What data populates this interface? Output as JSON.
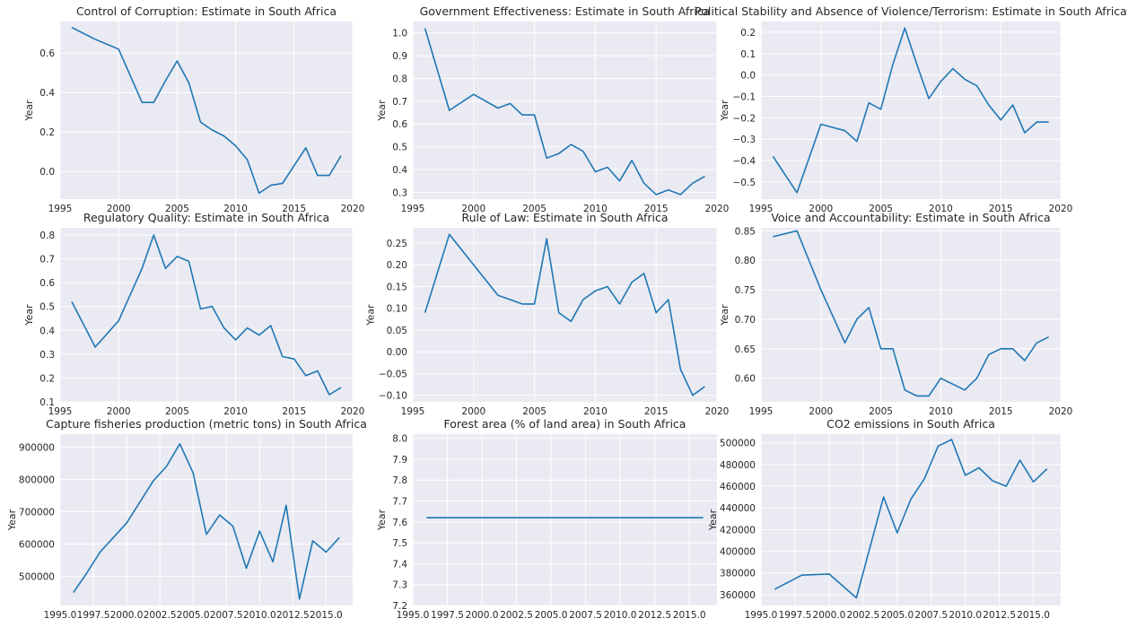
{
  "colors": {
    "plot_bg": "#eaeaf2",
    "grid": "#ffffff",
    "line": "#1f77b4",
    "text": "#262626"
  },
  "chart_data": [
    {
      "type": "line",
      "title": "Control of Corruption: Estimate in South Africa",
      "ylabel": "Year",
      "xlim": [
        1995,
        2020
      ],
      "ylim": [
        -0.14,
        0.76
      ],
      "xticks": [
        1995,
        2000,
        2005,
        2010,
        2015,
        2020
      ],
      "xtick_labels": [
        "1995",
        "2000",
        "2005",
        "2010",
        "2015",
        "2020"
      ],
      "yticks": [
        0.0,
        0.2,
        0.4,
        0.6
      ],
      "ytick_labels": [
        "0.0",
        "0.2",
        "0.4",
        "0.6"
      ],
      "grid": true,
      "series": [
        {
          "x": [
            1996,
            1998,
            2000,
            2002,
            2003,
            2004,
            2005,
            2006,
            2007,
            2008,
            2009,
            2010,
            2011,
            2012,
            2013,
            2014,
            2015,
            2016,
            2017,
            2018,
            2019
          ],
          "y": [
            0.73,
            0.67,
            0.62,
            0.35,
            0.35,
            0.46,
            0.56,
            0.45,
            0.25,
            0.21,
            0.18,
            0.13,
            0.06,
            -0.11,
            -0.07,
            -0.06,
            0.03,
            0.12,
            -0.02,
            -0.02,
            0.08
          ]
        }
      ]
    },
    {
      "type": "line",
      "title": "Government Effectiveness: Estimate in South Africa",
      "ylabel": "Year",
      "xlim": [
        1995,
        2020
      ],
      "ylim": [
        0.27,
        1.05
      ],
      "xticks": [
        1995,
        2000,
        2005,
        2010,
        2015,
        2020
      ],
      "xtick_labels": [
        "1995",
        "2000",
        "2005",
        "2010",
        "2015",
        "2020"
      ],
      "yticks": [
        0.3,
        0.4,
        0.5,
        0.6,
        0.7,
        0.8,
        0.9,
        1.0
      ],
      "ytick_labels": [
        "0.3",
        "0.4",
        "0.5",
        "0.6",
        "0.7",
        "0.8",
        "0.9",
        "1.0"
      ],
      "grid": true,
      "series": [
        {
          "x": [
            1996,
            1998,
            2000,
            2002,
            2003,
            2004,
            2005,
            2006,
            2007,
            2008,
            2009,
            2010,
            2011,
            2012,
            2013,
            2014,
            2015,
            2016,
            2017,
            2018,
            2019
          ],
          "y": [
            1.02,
            0.66,
            0.73,
            0.67,
            0.69,
            0.64,
            0.64,
            0.45,
            0.47,
            0.51,
            0.48,
            0.39,
            0.41,
            0.35,
            0.44,
            0.34,
            0.29,
            0.31,
            0.29,
            0.34,
            0.37
          ]
        }
      ]
    },
    {
      "type": "line",
      "title": "Political Stability and Absence of Violence/Terrorism: Estimate in South Africa",
      "ylabel": "Year",
      "xlim": [
        1995,
        2020
      ],
      "ylim": [
        -0.58,
        0.25
      ],
      "xticks": [
        1995,
        2000,
        2005,
        2010,
        2015,
        2020
      ],
      "xtick_labels": [
        "1995",
        "2000",
        "2005",
        "2010",
        "2015",
        "2020"
      ],
      "yticks": [
        -0.5,
        -0.4,
        -0.3,
        -0.2,
        -0.1,
        0.0,
        0.1,
        0.2
      ],
      "ytick_labels": [
        "−0.5",
        "−0.4",
        "−0.3",
        "−0.2",
        "−0.1",
        "0.0",
        "0.1",
        "0.2"
      ],
      "grid": true,
      "series": [
        {
          "x": [
            1996,
            1998,
            2000,
            2002,
            2003,
            2004,
            2005,
            2006,
            2007,
            2008,
            2009,
            2010,
            2011,
            2012,
            2013,
            2014,
            2015,
            2016,
            2017,
            2018,
            2019
          ],
          "y": [
            -0.38,
            -0.55,
            -0.23,
            -0.26,
            -0.31,
            -0.13,
            -0.16,
            0.05,
            0.22,
            0.05,
            -0.11,
            -0.03,
            0.03,
            -0.02,
            -0.05,
            -0.14,
            -0.21,
            -0.14,
            -0.27,
            -0.22,
            -0.22
          ]
        }
      ]
    },
    {
      "type": "line",
      "title": "Regulatory Quality: Estimate in South Africa",
      "ylabel": "Year",
      "xlim": [
        1995,
        2020
      ],
      "ylim": [
        0.1,
        0.83
      ],
      "xticks": [
        1995,
        2000,
        2005,
        2010,
        2015,
        2020
      ],
      "xtick_labels": [
        "1995",
        "2000",
        "2005",
        "2010",
        "2015",
        "2020"
      ],
      "yticks": [
        0.1,
        0.2,
        0.3,
        0.4,
        0.5,
        0.6,
        0.7,
        0.8
      ],
      "ytick_labels": [
        "0.1",
        "0.2",
        "0.3",
        "0.4",
        "0.5",
        "0.6",
        "0.7",
        "0.8"
      ],
      "grid": true,
      "series": [
        {
          "x": [
            1996,
            1998,
            2000,
            2002,
            2003,
            2004,
            2005,
            2006,
            2007,
            2008,
            2009,
            2010,
            2011,
            2012,
            2013,
            2014,
            2015,
            2016,
            2017,
            2018,
            2019
          ],
          "y": [
            0.52,
            0.33,
            0.44,
            0.66,
            0.8,
            0.66,
            0.71,
            0.69,
            0.49,
            0.5,
            0.41,
            0.36,
            0.41,
            0.38,
            0.42,
            0.29,
            0.28,
            0.21,
            0.23,
            0.13,
            0.16
          ]
        }
      ]
    },
    {
      "type": "line",
      "title": "Rule of Law: Estimate in South Africa",
      "ylabel": "Year",
      "xlim": [
        1995,
        2020
      ],
      "ylim": [
        -0.115,
        0.285
      ],
      "xticks": [
        1995,
        2000,
        2005,
        2010,
        2015,
        2020
      ],
      "xtick_labels": [
        "1995",
        "2000",
        "2005",
        "2010",
        "2015",
        "2020"
      ],
      "yticks": [
        -0.1,
        -0.05,
        0.0,
        0.05,
        0.1,
        0.15,
        0.2,
        0.25
      ],
      "ytick_labels": [
        "−0.10",
        "−0.05",
        "0.00",
        "0.05",
        "0.10",
        "0.15",
        "0.20",
        "0.25"
      ],
      "grid": true,
      "series": [
        {
          "x": [
            1996,
            1998,
            2000,
            2002,
            2003,
            2004,
            2005,
            2006,
            2007,
            2008,
            2009,
            2010,
            2011,
            2012,
            2013,
            2014,
            2015,
            2016,
            2017,
            2018,
            2019
          ],
          "y": [
            0.09,
            0.27,
            0.2,
            0.13,
            0.12,
            0.11,
            0.11,
            0.26,
            0.09,
            0.07,
            0.12,
            0.14,
            0.15,
            0.11,
            0.16,
            0.18,
            0.09,
            0.12,
            -0.04,
            -0.1,
            -0.08
          ]
        }
      ]
    },
    {
      "type": "line",
      "title": "Voice and Accountability: Estimate in South Africa",
      "ylabel": "Year",
      "xlim": [
        1995,
        2020
      ],
      "ylim": [
        0.56,
        0.855
      ],
      "xticks": [
        1995,
        2000,
        2005,
        2010,
        2015,
        2020
      ],
      "xtick_labels": [
        "1995",
        "2000",
        "2005",
        "2010",
        "2015",
        "2020"
      ],
      "yticks": [
        0.6,
        0.65,
        0.7,
        0.75,
        0.8,
        0.85
      ],
      "ytick_labels": [
        "0.60",
        "0.65",
        "0.70",
        "0.75",
        "0.80",
        "0.85"
      ],
      "grid": true,
      "series": [
        {
          "x": [
            1996,
            1998,
            2000,
            2002,
            2003,
            2004,
            2005,
            2006,
            2007,
            2008,
            2009,
            2010,
            2011,
            2012,
            2013,
            2014,
            2015,
            2016,
            2017,
            2018,
            2019
          ],
          "y": [
            0.84,
            0.85,
            0.75,
            0.66,
            0.7,
            0.72,
            0.65,
            0.65,
            0.58,
            0.57,
            0.57,
            0.6,
            0.59,
            0.58,
            0.6,
            0.64,
            0.65,
            0.65,
            0.63,
            0.66,
            0.67
          ]
        }
      ]
    },
    {
      "type": "line",
      "title": "Capture fisheries production (metric tons) in South Africa",
      "ylabel": "Year",
      "xlim": [
        1995,
        2017
      ],
      "ylim": [
        410000,
        940000
      ],
      "xticks": [
        1995,
        1997.5,
        2000,
        2002.5,
        2005,
        2007.5,
        2010,
        2012.5,
        2015
      ],
      "xtick_labels": [
        "1995.0",
        "1997.5",
        "2000.0",
        "2002.5",
        "2005.0",
        "2007.5",
        "2010.0",
        "2012.5",
        "2015.0"
      ],
      "yticks": [
        500000,
        600000,
        700000,
        800000,
        900000
      ],
      "ytick_labels": [
        "500000",
        "600000",
        "700000",
        "800000",
        "900000"
      ],
      "grid": true,
      "series": [
        {
          "x": [
            1996,
            1997,
            1998,
            1999,
            2000,
            2001,
            2002,
            2003,
            2004,
            2005,
            2006,
            2007,
            2008,
            2009,
            2010,
            2011,
            2012,
            2013,
            2014,
            2015,
            2016
          ],
          "y": [
            450000,
            510000,
            575000,
            620000,
            665000,
            730000,
            795000,
            840000,
            910000,
            820000,
            630000,
            690000,
            655000,
            525000,
            640000,
            545000,
            720000,
            430000,
            610000,
            575000,
            620000
          ]
        }
      ]
    },
    {
      "type": "line",
      "title": "Forest area (% of land area) in South Africa",
      "ylabel": "Year",
      "xlim": [
        1995,
        2017
      ],
      "ylim": [
        7.2,
        8.02
      ],
      "xticks": [
        1995,
        1997.5,
        2000,
        2002.5,
        2005,
        2007.5,
        2010,
        2012.5,
        2015
      ],
      "xtick_labels": [
        "1995.0",
        "1997.5",
        "2000.0",
        "2002.5",
        "2005.0",
        "2007.5",
        "2010.0",
        "2012.5",
        "2015.0"
      ],
      "yticks": [
        7.2,
        7.3,
        7.4,
        7.5,
        7.6,
        7.7,
        7.8,
        7.9,
        8.0
      ],
      "ytick_labels": [
        "7.2",
        "7.3",
        "7.4",
        "7.5",
        "7.6",
        "7.7",
        "7.8",
        "7.9",
        "8.0"
      ],
      "grid": true,
      "series": [
        {
          "x": [
            1996,
            2016
          ],
          "y": [
            7.62,
            7.62
          ]
        }
      ]
    },
    {
      "type": "line",
      "title": "CO2 emissions in South Africa",
      "ylabel": "Year",
      "xlim": [
        1995,
        2017
      ],
      "ylim": [
        350000,
        508000
      ],
      "xticks": [
        1995,
        1997.5,
        2000,
        2002.5,
        2005,
        2007.5,
        2010,
        2012.5,
        2015
      ],
      "xtick_labels": [
        "1995.0",
        "1997.5",
        "2000.0",
        "2002.5",
        "2005.0",
        "2007.5",
        "2010.0",
        "2012.5",
        "2015.0"
      ],
      "yticks": [
        360000,
        380000,
        400000,
        420000,
        440000,
        460000,
        480000,
        500000
      ],
      "ytick_labels": [
        "360000",
        "380000",
        "400000",
        "420000",
        "440000",
        "460000",
        "480000",
        "500000"
      ],
      "grid": true,
      "series": [
        {
          "x": [
            1996,
            1998,
            2000,
            2002,
            2004,
            2005,
            2006,
            2007,
            2008,
            2009,
            2010,
            2011,
            2012,
            2013,
            2014,
            2015,
            2016
          ],
          "y": [
            365000,
            378000,
            379000,
            357000,
            450000,
            417000,
            448000,
            467000,
            497000,
            503000,
            470000,
            477000,
            465000,
            460000,
            484000,
            464000,
            476000
          ]
        }
      ]
    }
  ]
}
